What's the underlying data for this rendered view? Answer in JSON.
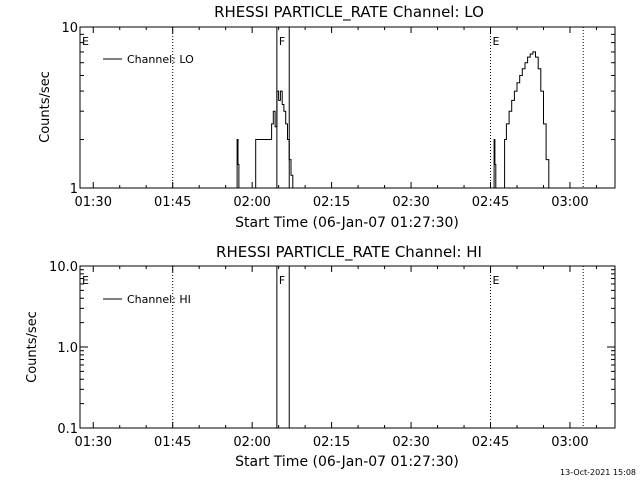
{
  "footer": {
    "timestamp": "13-Oct-2021 15:08"
  },
  "chart_data": [
    {
      "type": "line",
      "title": "RHESSI PARTICLE_RATE Channel: LO",
      "xlabel": "Start Time (06-Jan-07 01:27:30)",
      "ylabel": "Counts/sec",
      "xlim": [
        "01:27:30",
        "03:08:30"
      ],
      "ylim": [
        1,
        10
      ],
      "yscale": "log",
      "x_ticks": [
        "01:30",
        "01:45",
        "02:00",
        "02:15",
        "02:30",
        "02:45",
        "03:00"
      ],
      "y_ticks": [
        "1",
        "10"
      ],
      "legend": {
        "position": "top-left",
        "entries": [
          "Channel: LO"
        ]
      },
      "markers": [
        {
          "label": "E",
          "time": "01:27:30",
          "style": "dotted"
        },
        {
          "label": "",
          "time": "01:45:00",
          "style": "dotted"
        },
        {
          "label": "F",
          "time": "02:04:40",
          "style": "solid"
        },
        {
          "label": "",
          "time": "02:07:00",
          "style": "solid"
        },
        {
          "label": "E",
          "time": "02:45:00",
          "style": "dotted"
        },
        {
          "label": "",
          "time": "03:02:30",
          "style": "dotted"
        }
      ],
      "series": [
        {
          "name": "Channel: LO",
          "x": [
            "01:27:30",
            "01:57:00",
            "01:57:10",
            "01:57:20",
            "01:57:30",
            "02:00:30",
            "02:00:40",
            "02:03:30",
            "02:03:40",
            "02:04:00",
            "02:04:20",
            "02:04:40",
            "02:05:00",
            "02:05:20",
            "02:05:40",
            "02:06:00",
            "02:06:20",
            "02:06:40",
            "02:07:00",
            "02:07:20",
            "02:07:40",
            "02:08:00",
            "02:08:20",
            "02:08:40",
            "02:09:00",
            "02:45:30",
            "02:45:40",
            "02:45:50",
            "02:46:00",
            "02:47:30",
            "02:47:40",
            "02:48:00",
            "02:48:30",
            "02:49:00",
            "02:49:30",
            "02:50:00",
            "02:50:30",
            "02:51:00",
            "02:51:30",
            "02:52:00",
            "02:52:30",
            "02:53:00",
            "02:53:30",
            "02:54:00",
            "02:54:30",
            "02:55:00",
            "02:55:30",
            "02:56:00",
            "02:56:30",
            "03:08:30"
          ],
          "values": [
            1,
            1,
            2,
            1.4,
            1,
            1,
            2,
            2,
            2.5,
            3,
            2.4,
            4,
            3.5,
            4,
            3.3,
            3,
            2.5,
            2,
            1.5,
            1.2,
            1,
            1,
            1,
            1,
            1,
            1,
            2,
            1.4,
            1,
            1,
            2,
            2.5,
            3,
            3.5,
            4,
            4.5,
            5,
            5.5,
            6,
            6.5,
            6.8,
            7,
            6.5,
            5.5,
            4,
            2.5,
            1.5,
            1,
            1,
            1
          ]
        }
      ]
    },
    {
      "type": "line",
      "title": "RHESSI PARTICLE_RATE Channel: HI",
      "xlabel": "Start Time (06-Jan-07 01:27:30)",
      "ylabel": "Counts/sec",
      "xlim": [
        "01:27:30",
        "03:08:30"
      ],
      "ylim": [
        0.1,
        10
      ],
      "yscale": "log",
      "x_ticks": [
        "01:30",
        "01:45",
        "02:00",
        "02:15",
        "02:30",
        "02:45",
        "03:00"
      ],
      "y_ticks": [
        "0.1",
        "1.0",
        "10.0"
      ],
      "legend": {
        "position": "top-left",
        "entries": [
          "Channel: HI"
        ]
      },
      "markers": [
        {
          "label": "E",
          "time": "01:27:30",
          "style": "dotted"
        },
        {
          "label": "",
          "time": "01:45:00",
          "style": "dotted"
        },
        {
          "label": "F",
          "time": "02:04:40",
          "style": "solid"
        },
        {
          "label": "",
          "time": "02:07:00",
          "style": "solid"
        },
        {
          "label": "E",
          "time": "02:45:00",
          "style": "dotted"
        },
        {
          "label": "",
          "time": "03:02:30",
          "style": "dotted"
        }
      ],
      "series": [
        {
          "name": "Channel: HI",
          "x": [],
          "values": []
        }
      ]
    }
  ]
}
